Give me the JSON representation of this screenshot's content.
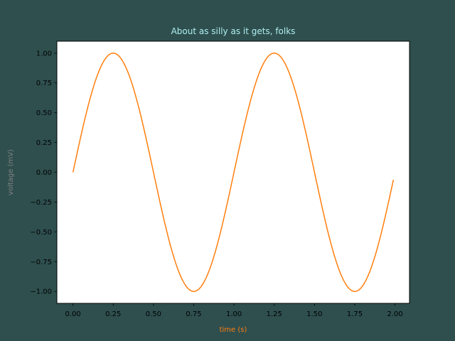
{
  "colors": {
    "figure_background": "#2f4f4f",
    "axes_background": "#ffffff",
    "line": "#ff7f0e",
    "title": "#afeeee",
    "xlabel": "#ff7f0e",
    "ylabel": "#808080",
    "ticks": "#000000"
  },
  "chart_data": {
    "type": "line",
    "title": "About as silly as it gets, folks",
    "xlabel": "time (s)",
    "ylabel": "voltage (mV)",
    "xlim": [
      -0.1,
      2.09
    ],
    "ylim": [
      -1.1,
      1.1
    ],
    "grid": false,
    "function": "sin(2*pi*t)",
    "x": [
      0.0,
      0.05,
      0.1,
      0.15,
      0.2,
      0.25,
      0.3,
      0.35,
      0.4,
      0.45,
      0.5,
      0.55,
      0.6,
      0.65,
      0.7,
      0.75,
      0.8,
      0.85,
      0.9,
      0.95,
      1.0,
      1.05,
      1.1,
      1.15,
      1.2,
      1.25,
      1.3,
      1.35,
      1.4,
      1.45,
      1.5,
      1.55,
      1.6,
      1.65,
      1.7,
      1.75,
      1.8,
      1.85,
      1.9,
      1.95,
      1.99
    ],
    "series": [
      {
        "values": [
          0.0,
          0.309,
          0.588,
          0.809,
          0.951,
          1.0,
          0.951,
          0.809,
          0.588,
          0.309,
          0.0,
          -0.309,
          -0.588,
          -0.809,
          -0.951,
          -1.0,
          -0.951,
          -0.809,
          -0.588,
          -0.309,
          0.0,
          0.309,
          0.588,
          0.809,
          0.951,
          1.0,
          0.951,
          0.809,
          0.588,
          0.309,
          0.0,
          -0.309,
          -0.588,
          -0.809,
          -0.951,
          -1.0,
          -0.951,
          -0.809,
          -0.588,
          -0.309,
          -0.063
        ]
      }
    ],
    "xticks": [
      {
        "value": 0.0,
        "label": "0.00"
      },
      {
        "value": 0.25,
        "label": "0.25"
      },
      {
        "value": 0.5,
        "label": "0.50"
      },
      {
        "value": 0.75,
        "label": "0.75"
      },
      {
        "value": 1.0,
        "label": "1.00"
      },
      {
        "value": 1.25,
        "label": "1.25"
      },
      {
        "value": 1.5,
        "label": "1.50"
      },
      {
        "value": 1.75,
        "label": "1.75"
      },
      {
        "value": 2.0,
        "label": "2.00"
      }
    ],
    "yticks": [
      {
        "value": 1.0,
        "label": "1.00"
      },
      {
        "value": 0.75,
        "label": "0.75"
      },
      {
        "value": 0.5,
        "label": "0.50"
      },
      {
        "value": 0.25,
        "label": "0.25"
      },
      {
        "value": 0.0,
        "label": "0.00"
      },
      {
        "value": -0.25,
        "label": "−0.25"
      },
      {
        "value": -0.5,
        "label": "−0.50"
      },
      {
        "value": -0.75,
        "label": "−0.75"
      },
      {
        "value": -1.0,
        "label": "−1.00"
      }
    ]
  }
}
